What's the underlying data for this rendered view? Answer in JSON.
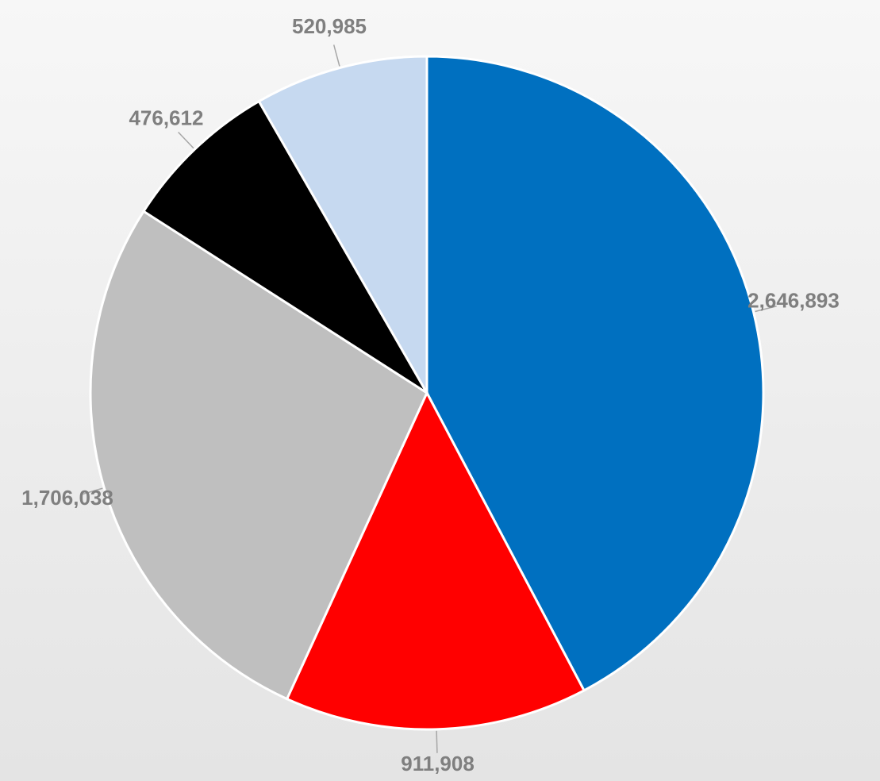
{
  "chart_data": {
    "type": "pie",
    "values": [
      2646893,
      911908,
      1706038,
      476612,
      520985
    ],
    "value_labels": [
      "2,646,893",
      "911,908",
      "1,706,038",
      "476,612",
      "520,985"
    ],
    "colors": [
      "#0070c0",
      "#ff0000",
      "#bfbfbf",
      "#000000",
      "#c6d9f0"
    ]
  }
}
